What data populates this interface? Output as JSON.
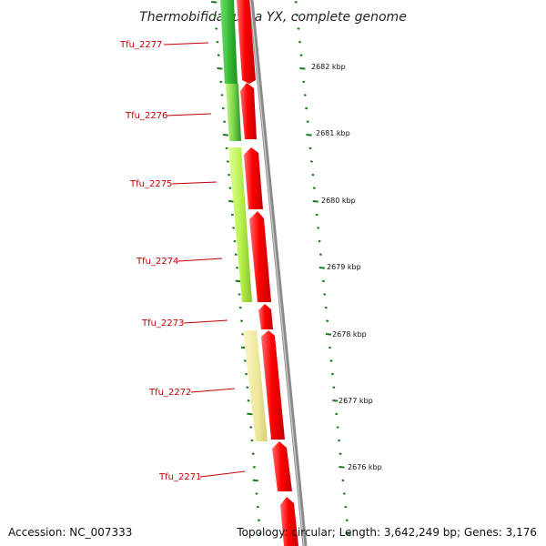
{
  "title": "Thermobifida fusca YX, complete genome",
  "footer": {
    "accession": "Accession: NC_007333",
    "topology": "Topology: circular; Length: 3,642,249 bp; Genes: 3,176"
  },
  "gene_labels": [
    {
      "name": "Tfu_2277"
    },
    {
      "name": "Tfu_2276"
    },
    {
      "name": "Tfu_2275"
    },
    {
      "name": "Tfu_2274"
    },
    {
      "name": "Tfu_2273"
    },
    {
      "name": "Tfu_2272"
    },
    {
      "name": "Tfu_2271"
    }
  ],
  "scale_ticks": [
    {
      "label": "2682 kbp"
    },
    {
      "label": "2681 kbp"
    },
    {
      "label": "2680 kbp"
    },
    {
      "label": "2679 kbp"
    },
    {
      "label": "2678 kbp"
    },
    {
      "label": "2677 kbp"
    },
    {
      "label": "2676 kbp"
    }
  ],
  "colors": {
    "forward_cds": "#ff1a1a",
    "backbone": "#8a8a8a",
    "tick": "#1a7a1a",
    "label": "#c00000",
    "green_dark": "#2fb52f",
    "green_mid": "#7fd84a",
    "green_light": "#b6f04a",
    "khaki": "#ede79a"
  }
}
